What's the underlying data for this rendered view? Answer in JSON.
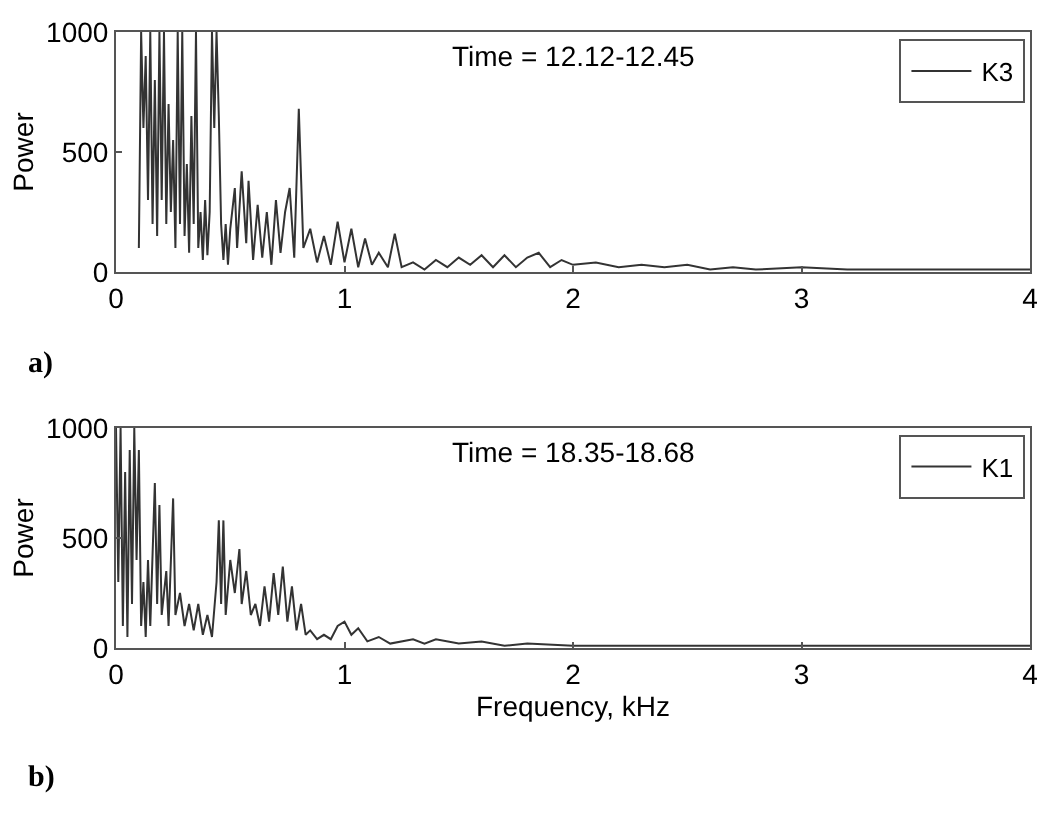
{
  "chart_data": [
    {
      "type": "line",
      "ylabel": "Power",
      "annotations": [
        "Time = 12.12-12.45",
        "a)"
      ],
      "x": [
        0.1,
        0.11,
        0.12,
        0.13,
        0.14,
        0.15,
        0.16,
        0.17,
        0.18,
        0.19,
        0.2,
        0.21,
        0.22,
        0.23,
        0.24,
        0.25,
        0.26,
        0.27,
        0.28,
        0.29,
        0.3,
        0.31,
        0.32,
        0.33,
        0.34,
        0.35,
        0.36,
        0.37,
        0.38,
        0.39,
        0.4,
        0.41,
        0.42,
        0.43,
        0.44,
        0.45,
        0.46,
        0.47,
        0.48,
        0.49,
        0.5,
        0.52,
        0.53,
        0.55,
        0.57,
        0.58,
        0.6,
        0.62,
        0.64,
        0.66,
        0.68,
        0.7,
        0.72,
        0.74,
        0.76,
        0.78,
        0.8,
        0.82,
        0.85,
        0.88,
        0.91,
        0.94,
        0.97,
        1.0,
        1.03,
        1.06,
        1.09,
        1.12,
        1.15,
        1.19,
        1.22,
        1.25,
        1.3,
        1.35,
        1.4,
        1.45,
        1.5,
        1.55,
        1.6,
        1.65,
        1.7,
        1.75,
        1.8,
        1.85,
        1.9,
        1.95,
        2.0,
        2.1,
        2.2,
        2.3,
        2.4,
        2.5,
        2.6,
        2.7,
        2.8,
        3.0,
        3.2,
        3.4,
        3.6,
        3.8,
        4.0
      ],
      "series": [
        {
          "name": "K3",
          "color": "#333333",
          "values": [
            100,
            1000,
            600,
            900,
            300,
            1000,
            200,
            800,
            150,
            1000,
            300,
            1000,
            200,
            700,
            250,
            550,
            100,
            1000,
            200,
            1000,
            150,
            450,
            80,
            650,
            200,
            1000,
            100,
            250,
            50,
            300,
            70,
            250,
            1000,
            600,
            1000,
            650,
            200,
            50,
            200,
            30,
            180,
            350,
            100,
            420,
            120,
            380,
            50,
            280,
            60,
            250,
            30,
            300,
            80,
            250,
            350,
            60,
            680,
            100,
            180,
            40,
            150,
            30,
            210,
            40,
            180,
            20,
            140,
            30,
            80,
            20,
            160,
            20,
            40,
            10,
            50,
            20,
            60,
            30,
            70,
            20,
            70,
            20,
            60,
            80,
            20,
            50,
            30,
            40,
            20,
            30,
            20,
            30,
            10,
            20,
            10,
            20,
            10,
            10,
            10,
            10,
            10
          ]
        }
      ],
      "xlim": [
        0,
        4
      ],
      "xticks": [
        0,
        1,
        2,
        3,
        4
      ],
      "ylim": [
        0,
        1000
      ],
      "yticks": [
        0,
        500,
        1000
      ],
      "grid": false,
      "legend": "top right",
      "line_style": "solid",
      "marker": "none"
    },
    {
      "type": "line",
      "xlabel": "Frequency, kHz",
      "ylabel": "Power",
      "annotations": [
        "Time = 18.35-18.68",
        "b)"
      ],
      "x": [
        0,
        0.01,
        0.02,
        0.03,
        0.04,
        0.05,
        0.06,
        0.07,
        0.08,
        0.09,
        0.1,
        0.11,
        0.12,
        0.13,
        0.14,
        0.15,
        0.17,
        0.18,
        0.19,
        0.2,
        0.22,
        0.23,
        0.25,
        0.26,
        0.28,
        0.3,
        0.32,
        0.34,
        0.36,
        0.38,
        0.4,
        0.42,
        0.44,
        0.45,
        0.46,
        0.47,
        0.48,
        0.5,
        0.52,
        0.54,
        0.55,
        0.57,
        0.59,
        0.61,
        0.63,
        0.65,
        0.67,
        0.69,
        0.71,
        0.73,
        0.75,
        0.77,
        0.79,
        0.81,
        0.83,
        0.85,
        0.88,
        0.91,
        0.94,
        0.97,
        1.0,
        1.03,
        1.06,
        1.1,
        1.15,
        1.2,
        1.3,
        1.35,
        1.4,
        1.5,
        1.6,
        1.7,
        1.8,
        2.0,
        2.2,
        2.4,
        2.6,
        2.8,
        3.0,
        3.5,
        4.0
      ],
      "series": [
        {
          "name": "K1",
          "color": "#333333",
          "values": [
            1000,
            300,
            1000,
            100,
            800,
            50,
            900,
            200,
            1000,
            400,
            900,
            100,
            300,
            50,
            400,
            100,
            750,
            200,
            650,
            150,
            350,
            100,
            680,
            150,
            250,
            100,
            200,
            80,
            200,
            60,
            150,
            50,
            300,
            580,
            200,
            580,
            150,
            400,
            250,
            450,
            200,
            350,
            150,
            200,
            100,
            280,
            120,
            340,
            150,
            370,
            120,
            280,
            80,
            200,
            60,
            80,
            40,
            60,
            40,
            100,
            120,
            60,
            90,
            30,
            50,
            20,
            40,
            20,
            40,
            20,
            30,
            10,
            20,
            10,
            10,
            10,
            10,
            10,
            10,
            10,
            10
          ]
        }
      ],
      "xlim": [
        0,
        4
      ],
      "xticks": [
        0,
        1,
        2,
        3,
        4
      ],
      "ylim": [
        0,
        1000
      ],
      "yticks": [
        0,
        500,
        1000
      ],
      "grid": false,
      "legend": "top right",
      "line_style": "solid",
      "marker": "none"
    }
  ]
}
